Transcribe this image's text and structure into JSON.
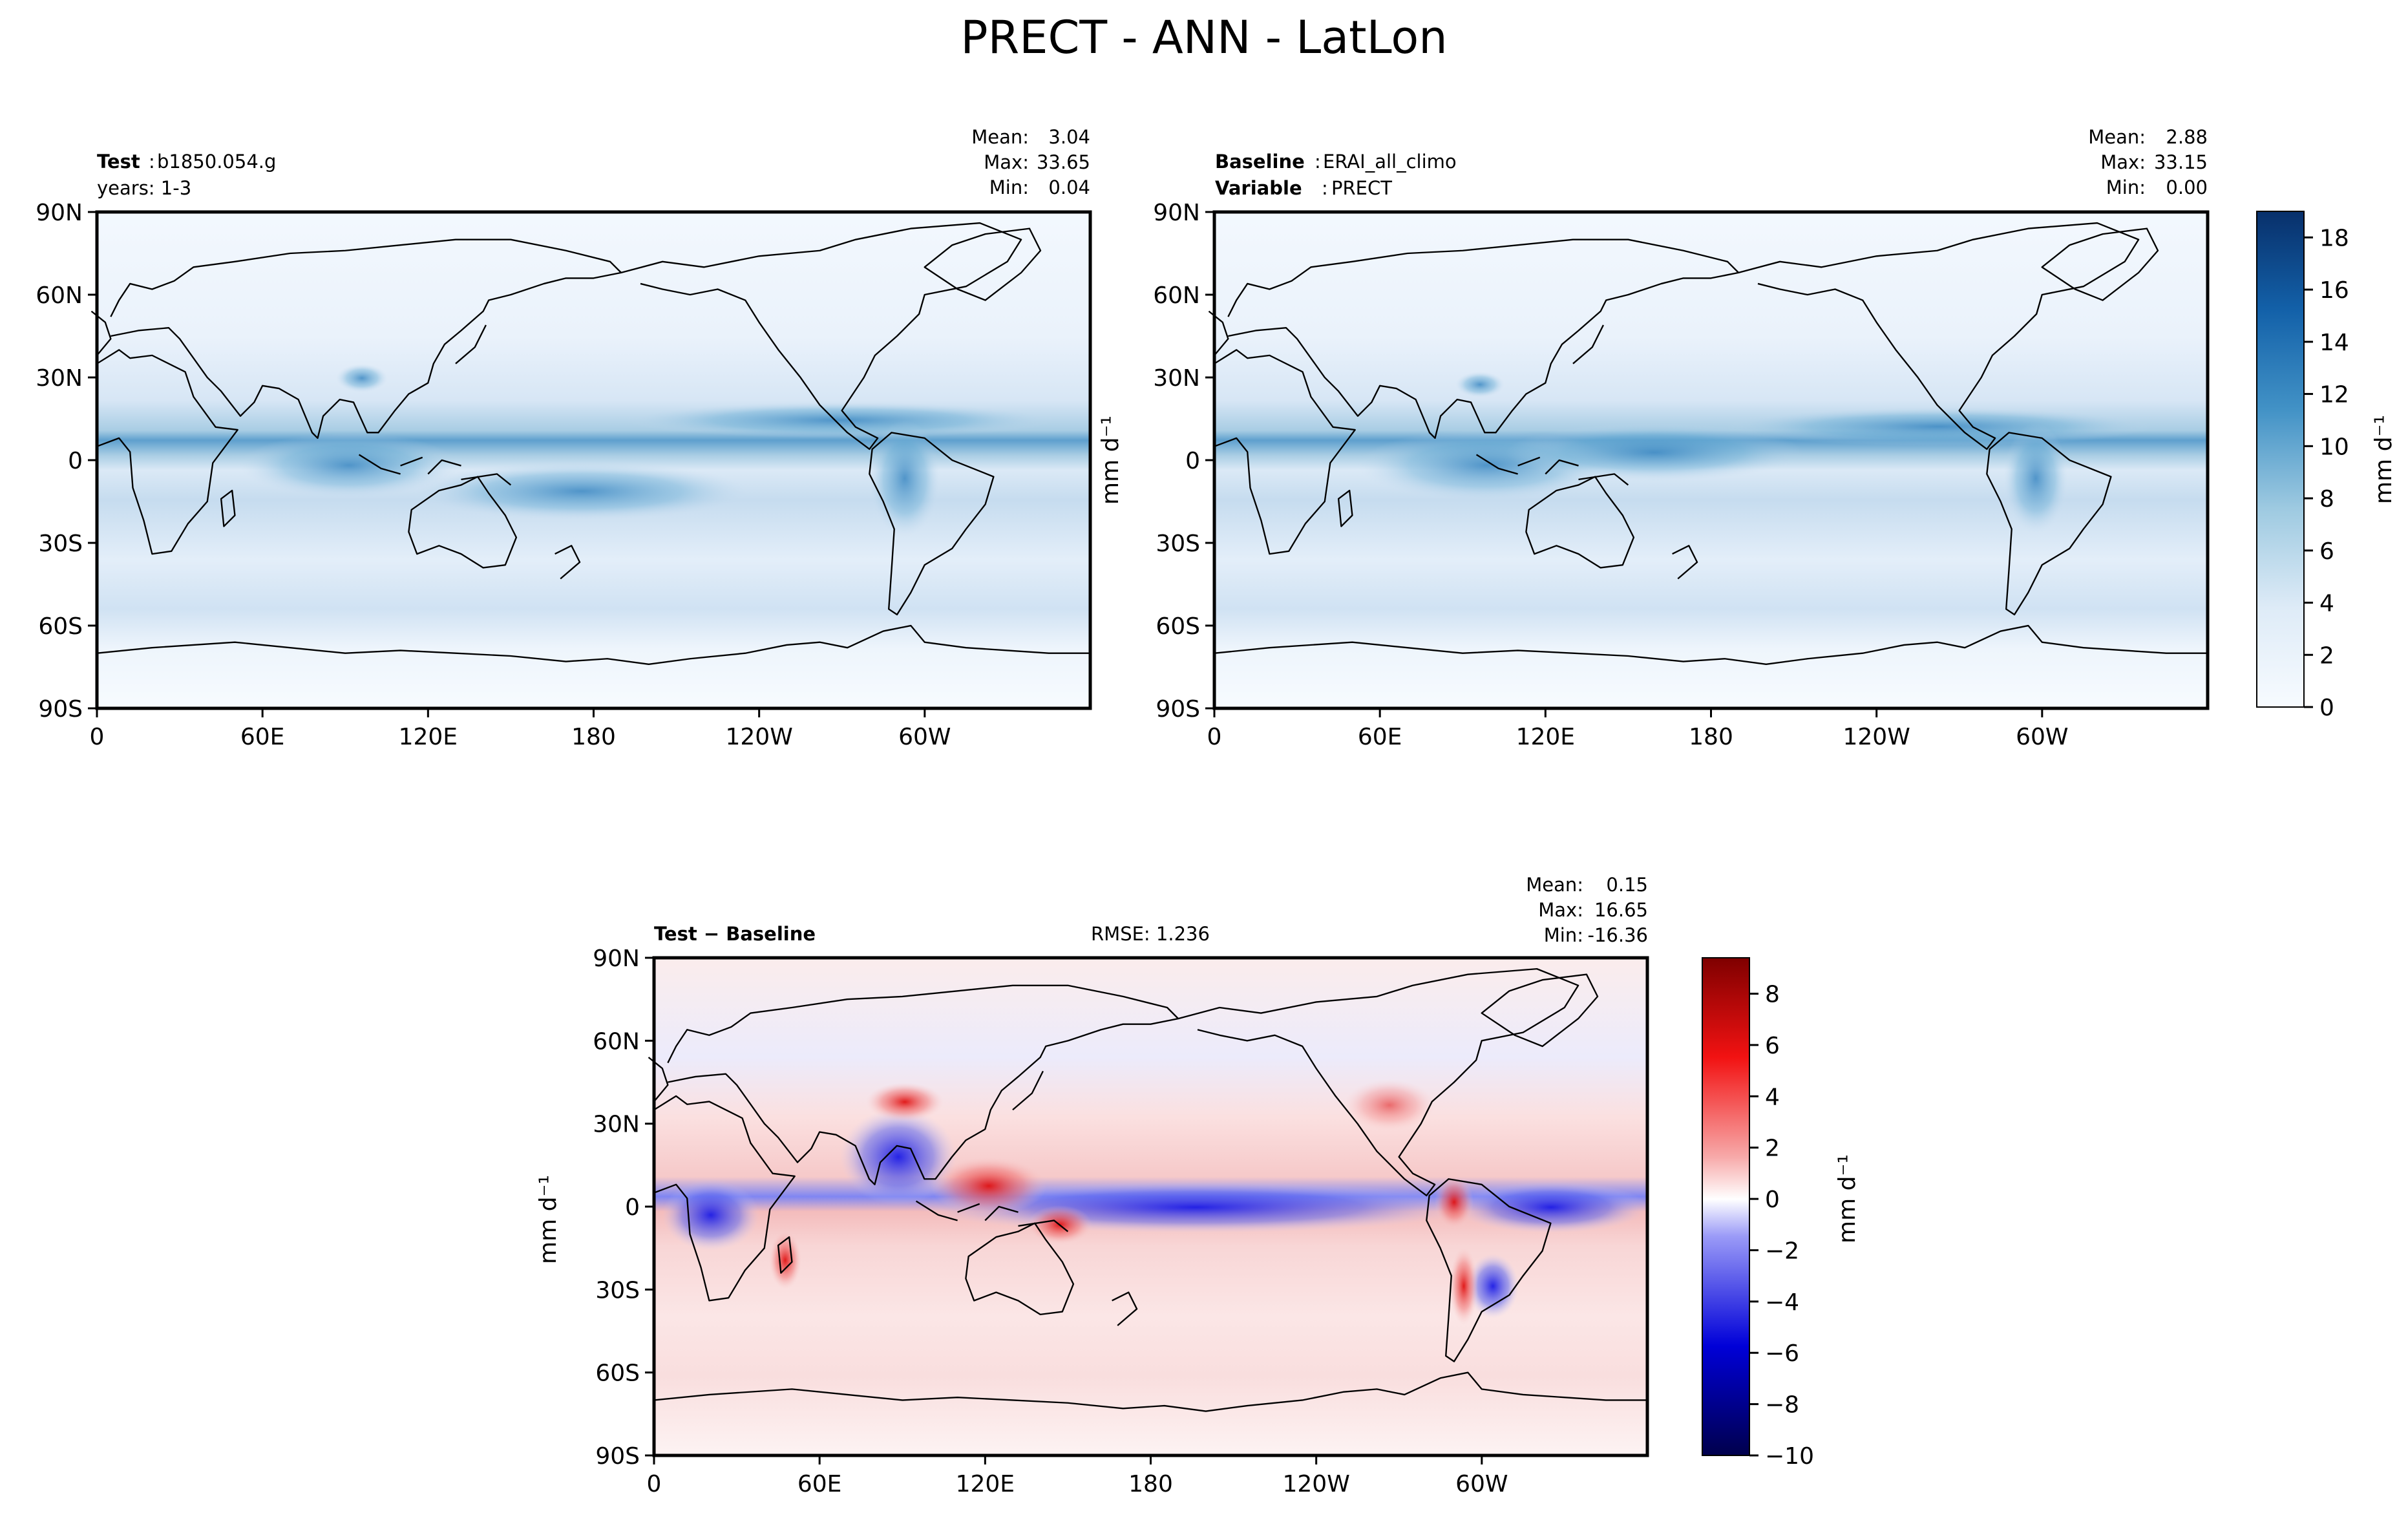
{
  "page_title": "PRECT - ANN - LatLon",
  "chart_data": [
    {
      "type": "heatmap",
      "name": "test",
      "header_left": {
        "label": "Test",
        "value": "b1850.054.g",
        "line2": "years: 1-3"
      },
      "stats": {
        "mean_label": "Mean:",
        "mean": "3.04",
        "max_label": "Max:",
        "max": "33.65",
        "min_label": "Min:",
        "min": "0.04"
      },
      "x_ticks": [
        "0",
        "60E",
        "120E",
        "180",
        "120W",
        "60W"
      ],
      "y_ticks": [
        "90N",
        "60N",
        "30N",
        "0",
        "30S",
        "60S",
        "90S"
      ],
      "xlim": [
        0,
        360
      ],
      "ylim": [
        -90,
        90
      ],
      "ylabel": ""
    },
    {
      "type": "heatmap",
      "name": "baseline",
      "header_left": {
        "label": "Baseline",
        "value": "ERAI_all_climo",
        "label2": "Variable",
        "value2": "PRECT"
      },
      "stats": {
        "mean_label": "Mean:",
        "mean": "2.88",
        "max_label": "Max:",
        "max": "33.15",
        "min_label": "Min:",
        "min": "0.00"
      },
      "x_ticks": [
        "0",
        "60E",
        "120E",
        "180",
        "120W",
        "60W"
      ],
      "y_ticks": [
        "90N",
        "60N",
        "30N",
        "0",
        "30S",
        "60S",
        "90S"
      ],
      "xlim": [
        0,
        360
      ],
      "ylim": [
        -90,
        90
      ],
      "ylabel": "mm d⁻¹",
      "colorbar": {
        "ticks": [
          "0",
          "2",
          "4",
          "6",
          "8",
          "10",
          "12",
          "14",
          "16",
          "18"
        ],
        "range": [
          0,
          19
        ],
        "label": "mm d⁻¹",
        "cmap": "Blues"
      }
    },
    {
      "type": "heatmap",
      "name": "difference",
      "header_left": {
        "label": "Test − Baseline"
      },
      "header_center": "RMSE: 1.236",
      "stats": {
        "mean_label": "Mean:",
        "mean": "0.15",
        "max_label": "Max:",
        "max": "16.65",
        "min_label": "Min:",
        "min": "-16.36"
      },
      "x_ticks": [
        "0",
        "60E",
        "120E",
        "180",
        "120W",
        "60W"
      ],
      "y_ticks": [
        "90N",
        "60N",
        "30N",
        "0",
        "30S",
        "60S",
        "90S"
      ],
      "xlim": [
        0,
        360
      ],
      "ylim": [
        -90,
        90
      ],
      "ylabel": "mm d⁻¹",
      "colorbar": {
        "ticks": [
          "8",
          "6",
          "4",
          "2",
          "0",
          "−2",
          "−4",
          "−6",
          "−8",
          "−10"
        ],
        "range": [
          -10,
          9.4
        ],
        "label": "mm d⁻¹",
        "cmap": "seismic"
      }
    }
  ]
}
